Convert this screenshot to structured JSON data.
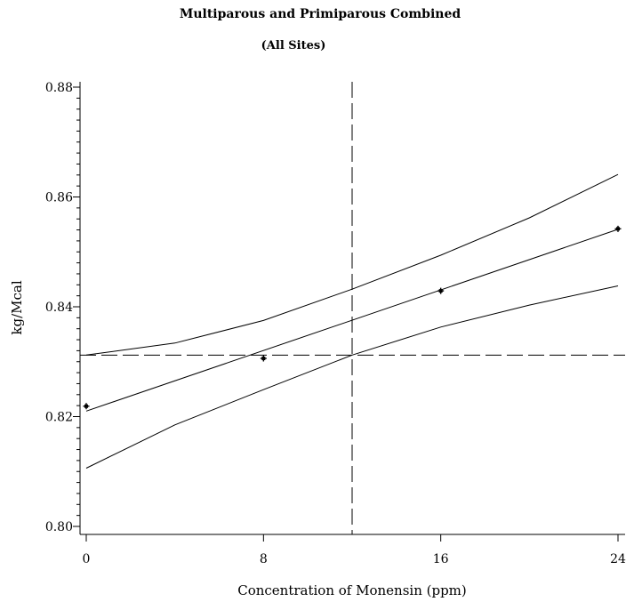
{
  "chart_data": {
    "type": "line",
    "title": "Multiparous and Primiparous Combined",
    "subtitle": "(All Sites)",
    "xlabel": "Concentration of Monensin (ppm)",
    "ylabel": "kg/Mcal",
    "xlim": [
      0,
      24
    ],
    "ylim": [
      0.8,
      0.88
    ],
    "x_ticks": [
      0,
      8,
      16,
      24
    ],
    "x_tick_labels": [
      "0",
      "8",
      "16",
      "24"
    ],
    "y_ticks": [
      0.8,
      0.82,
      0.84,
      0.86,
      0.88
    ],
    "y_tick_labels": [
      "0.80",
      "0.82",
      "0.84",
      "0.86",
      "0.88"
    ],
    "y_minor_step": 0.002,
    "grid": false,
    "series": [
      {
        "role": "fit",
        "x": [
          0,
          24
        ],
        "y": [
          0.821,
          0.8541
        ]
      },
      {
        "role": "upper",
        "x": [
          0,
          4,
          8,
          12,
          16,
          20,
          24
        ],
        "y": [
          0.8312,
          0.8334,
          0.8375,
          0.8432,
          0.8494,
          0.8562,
          0.8641
        ]
      },
      {
        "role": "lower",
        "x": [
          0,
          4,
          8,
          12,
          16,
          20,
          24
        ],
        "y": [
          0.8106,
          0.8185,
          0.8249,
          0.8312,
          0.8363,
          0.8403,
          0.8438
        ]
      },
      {
        "role": "observed",
        "x": [
          0,
          8,
          16,
          24
        ],
        "y": [
          0.8219,
          0.8306,
          0.8429,
          0.8542
        ]
      }
    ],
    "reference_lines": {
      "horizontal_y": 0.8312,
      "vertical_x": 12
    }
  }
}
